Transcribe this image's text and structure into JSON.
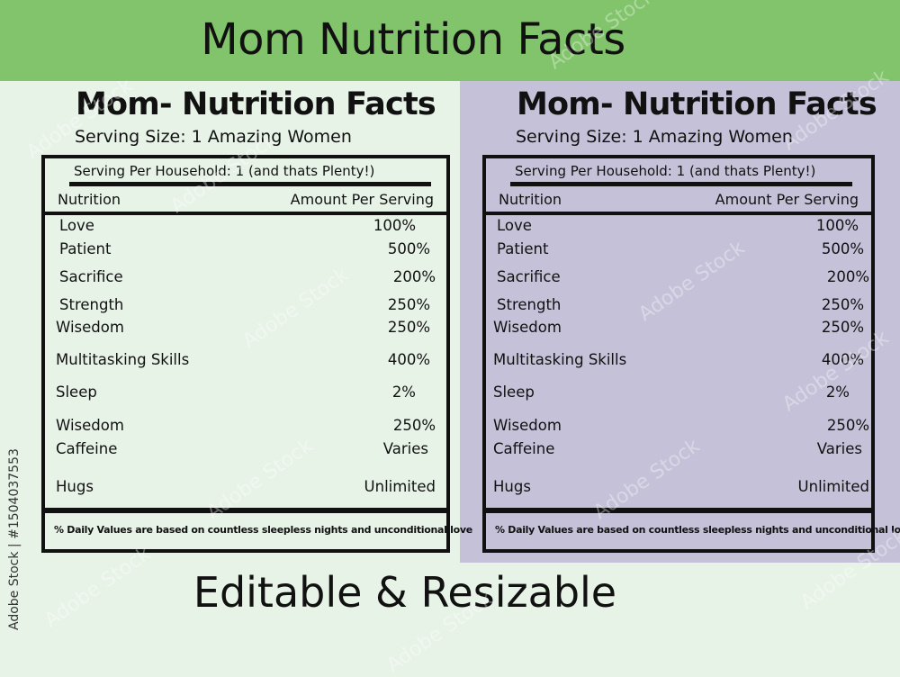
{
  "banner": {
    "title": "Mom Nutrition Facts"
  },
  "panel": {
    "title": "Mom- Nutrition Facts",
    "serving_size": "Serving Size: 1 Amazing Women",
    "per_household": "Serving Per Household: 1 (and thats Plenty!)",
    "col_nutrition": "Nutrition",
    "col_amount": "Amount Per Serving",
    "rows": [
      {
        "name": "Love",
        "value": "100%"
      },
      {
        "name": "Patient",
        "value": "500%"
      },
      {
        "name": "Sacrifice",
        "value": "200%"
      },
      {
        "name": "Strength",
        "value": "250%"
      },
      {
        "name": "Wisedom",
        "value": "250%"
      },
      {
        "name": "Multitasking Skills",
        "value": "400%"
      },
      {
        "name": "Sleep",
        "value": "2%"
      },
      {
        "name": "Wisedom",
        "value": "250%"
      },
      {
        "name": "Caffeine",
        "value": "Varies"
      },
      {
        "name": "Hugs",
        "value": "Unlimited"
      }
    ],
    "footnote": "% Daily Values are based on countless sleepless nights and unconditional love"
  },
  "bottom_title": "Editable & Resizable",
  "credit": "Adobe Stock | #1504037553",
  "watermark_text": "Adobe Stock",
  "colors": {
    "banner": "#82c46b",
    "left_background": "#e8f3e8",
    "right_background": "#c5c1d8",
    "text": "#111111"
  }
}
